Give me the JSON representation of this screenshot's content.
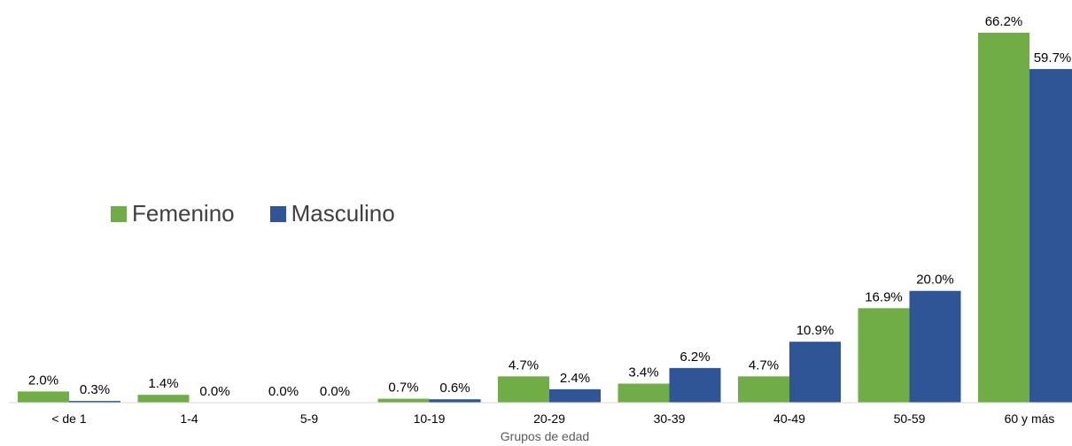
{
  "chart_data": {
    "type": "bar",
    "categories": [
      "< de 1",
      "1-4",
      "5-9",
      "10-19",
      "20-29",
      "30-39",
      "40-49",
      "50-59",
      "60 y más"
    ],
    "series": [
      {
        "name": "Femenino",
        "color": "#70AD47",
        "values": [
          2.0,
          1.4,
          0.0,
          0.7,
          4.7,
          3.4,
          4.7,
          16.9,
          66.2
        ],
        "labels": [
          "2.0%",
          "1.4%",
          "0.0%",
          "0.7%",
          "4.7%",
          "3.4%",
          "4.7%",
          "16.9%",
          "66.2%"
        ]
      },
      {
        "name": "Masculino",
        "color": "#2F5597",
        "values": [
          0.3,
          0.0,
          0.0,
          0.6,
          2.4,
          6.2,
          10.9,
          20.0,
          59.7
        ],
        "labels": [
          "0.3%",
          "0.0%",
          "0.0%",
          "0.6%",
          "2.4%",
          "6.2%",
          "10.9%",
          "20.0%",
          "59.7%"
        ]
      }
    ],
    "xlabel": "Grupos de edad",
    "ylim": [
      0,
      66.2
    ],
    "legend_position": "left-middle",
    "grid": false
  }
}
